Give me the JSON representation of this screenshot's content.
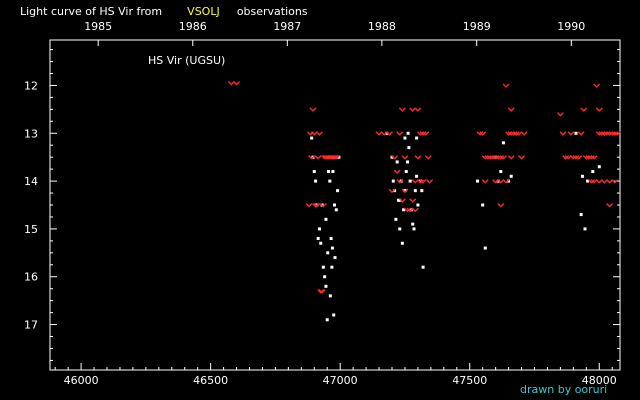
{
  "title_part1": "Light curve of HS Vir from",
  "title_source": "VSOLJ",
  "title_part2": "observations",
  "legend_label": "HS Vir (UGSU)",
  "credit": "drawn by ooruri",
  "colors": {
    "background": "#000000",
    "axis": "#ffffff",
    "source_highlight": "#ffff33",
    "credit": "#33cccc",
    "visual_obs": "#ffffff",
    "fainter_than": "#ff2a2a"
  },
  "chart_data": {
    "type": "scatter",
    "title": "Light curve of HS Vir from VSOLJ observations",
    "x_axis": {
      "label": "",
      "range": [
        45880,
        48080
      ],
      "ticks": [
        "46000",
        "46500",
        "47000",
        "47500",
        "48000"
      ],
      "tick_values": [
        46000,
        46500,
        47000,
        47500,
        48000
      ],
      "minor_step": 50
    },
    "top_axis": {
      "ticks": [
        "1985",
        "1986",
        "1987",
        "1988",
        "1989",
        "1990"
      ],
      "tick_values": [
        46066,
        46431,
        46796,
        47161,
        47527,
        47892
      ]
    },
    "y_axis": {
      "label": "",
      "range": [
        11.05,
        17.95
      ],
      "inverted": true,
      "ticks": [
        "12",
        "13",
        "14",
        "15",
        "16",
        "17"
      ],
      "tick_values": [
        12,
        13,
        14,
        15,
        16,
        17
      ],
      "minor_step": 0.25
    },
    "series": [
      {
        "marker": "dot",
        "points": [
          [
            46890,
            13.1
          ],
          [
            46895,
            13.5
          ],
          [
            46900,
            13.8
          ],
          [
            46905,
            14.0
          ],
          [
            46910,
            14.5
          ],
          [
            46915,
            15.2
          ],
          [
            46920,
            15.0
          ],
          [
            46925,
            15.3
          ],
          [
            46930,
            14.5
          ],
          [
            46935,
            15.8
          ],
          [
            46940,
            16.0
          ],
          [
            46945,
            16.2
          ],
          [
            46950,
            16.9
          ],
          [
            46955,
            13.8
          ],
          [
            46960,
            14.0
          ],
          [
            46965,
            15.2
          ],
          [
            46970,
            15.4
          ],
          [
            46975,
            16.8
          ],
          [
            46980,
            15.6
          ],
          [
            46985,
            14.6
          ],
          [
            46990,
            14.2
          ],
          [
            46995,
            13.5
          ],
          [
            46952,
            15.5
          ],
          [
            46962,
            16.4
          ],
          [
            46972,
            13.8
          ],
          [
            46945,
            14.8
          ],
          [
            46968,
            15.8
          ],
          [
            46978,
            14.5
          ],
          [
            47180,
            13.0
          ],
          [
            47200,
            13.5
          ],
          [
            47205,
            14.0
          ],
          [
            47210,
            14.2
          ],
          [
            47215,
            14.8
          ],
          [
            47220,
            13.6
          ],
          [
            47225,
            14.4
          ],
          [
            47230,
            15.0
          ],
          [
            47235,
            14.0
          ],
          [
            47240,
            15.3
          ],
          [
            47245,
            14.6
          ],
          [
            47250,
            14.2
          ],
          [
            47255,
            13.8
          ],
          [
            47260,
            13.6
          ],
          [
            47265,
            13.3
          ],
          [
            47270,
            14.0
          ],
          [
            47275,
            14.6
          ],
          [
            47280,
            14.9
          ],
          [
            47285,
            15.0
          ],
          [
            47290,
            14.2
          ],
          [
            47295,
            13.9
          ],
          [
            47300,
            14.5
          ],
          [
            47310,
            14.0
          ],
          [
            47315,
            14.2
          ],
          [
            47320,
            15.8
          ],
          [
            47250,
            13.1
          ],
          [
            47262,
            13.0
          ],
          [
            47230,
            14.4
          ],
          [
            47295,
            13.1
          ],
          [
            47530,
            14.0
          ],
          [
            47550,
            14.5
          ],
          [
            47560,
            15.4
          ],
          [
            47600,
            13.5
          ],
          [
            47610,
            14.0
          ],
          [
            47620,
            13.8
          ],
          [
            47630,
            13.2
          ],
          [
            47650,
            14.0
          ],
          [
            47660,
            13.9
          ],
          [
            47910,
            13.0
          ],
          [
            47930,
            14.7
          ],
          [
            47935,
            13.9
          ],
          [
            47945,
            15.0
          ],
          [
            47955,
            14.0
          ],
          [
            47975,
            13.8
          ],
          [
            48000,
            13.7
          ]
        ]
      },
      {
        "marker": "fainter-than",
        "points": [
          [
            46580,
            11.95
          ],
          [
            46600,
            11.95
          ],
          [
            46880,
            14.5
          ],
          [
            46885,
            13.0
          ],
          [
            46890,
            13.5
          ],
          [
            46895,
            12.5
          ],
          [
            46900,
            13.0
          ],
          [
            46905,
            14.5
          ],
          [
            46910,
            14.5
          ],
          [
            46915,
            13.5
          ],
          [
            46920,
            13.0
          ],
          [
            46925,
            16.3
          ],
          [
            46930,
            16.3
          ],
          [
            46935,
            14.5
          ],
          [
            46940,
            13.5
          ],
          [
            46945,
            13.5
          ],
          [
            46950,
            13.5
          ],
          [
            46955,
            13.5
          ],
          [
            46960,
            13.5
          ],
          [
            46965,
            13.5
          ],
          [
            46970,
            13.5
          ],
          [
            46975,
            13.5
          ],
          [
            46980,
            13.5
          ],
          [
            46985,
            13.5
          ],
          [
            47150,
            13.0
          ],
          [
            47170,
            13.0
          ],
          [
            47190,
            13.0
          ],
          [
            47210,
            13.5
          ],
          [
            47220,
            13.8
          ],
          [
            47230,
            14.0
          ],
          [
            47240,
            12.5
          ],
          [
            47250,
            13.5
          ],
          [
            47260,
            14.6
          ],
          [
            47270,
            14.6
          ],
          [
            47280,
            14.4
          ],
          [
            47290,
            14.6
          ],
          [
            47300,
            12.5
          ],
          [
            47310,
            13.0
          ],
          [
            47320,
            13.0
          ],
          [
            47330,
            13.0
          ],
          [
            47340,
            13.5
          ],
          [
            47345,
            14.0
          ],
          [
            47230,
            13.0
          ],
          [
            47280,
            12.5
          ],
          [
            47300,
            13.5
          ],
          [
            47310,
            14.0
          ],
          [
            47200,
            14.2
          ],
          [
            47240,
            14.4
          ],
          [
            47290,
            14.0
          ],
          [
            47320,
            14.0
          ],
          [
            47250,
            14.2
          ],
          [
            47540,
            13.0
          ],
          [
            47550,
            13.0
          ],
          [
            47560,
            13.5
          ],
          [
            47570,
            13.5
          ],
          [
            47580,
            13.5
          ],
          [
            47590,
            13.5
          ],
          [
            47600,
            13.5
          ],
          [
            47610,
            13.5
          ],
          [
            47620,
            13.5
          ],
          [
            47630,
            13.5
          ],
          [
            47640,
            12.0
          ],
          [
            47650,
            13.0
          ],
          [
            47660,
            13.0
          ],
          [
            47670,
            13.0
          ],
          [
            47680,
            13.0
          ],
          [
            47690,
            13.0
          ],
          [
            47700,
            13.5
          ],
          [
            47710,
            13.0
          ],
          [
            47560,
            14.0
          ],
          [
            47600,
            14.0
          ],
          [
            47620,
            14.0
          ],
          [
            47640,
            14.0
          ],
          [
            47660,
            13.5
          ],
          [
            47620,
            14.5
          ],
          [
            47660,
            12.5
          ],
          [
            47850,
            12.6
          ],
          [
            47860,
            13.0
          ],
          [
            47870,
            13.5
          ],
          [
            47880,
            13.5
          ],
          [
            47890,
            13.0
          ],
          [
            47900,
            13.5
          ],
          [
            47910,
            13.5
          ],
          [
            47920,
            13.5
          ],
          [
            47930,
            13.0
          ],
          [
            47940,
            12.5
          ],
          [
            47950,
            13.5
          ],
          [
            47960,
            13.5
          ],
          [
            47970,
            13.5
          ],
          [
            47980,
            13.5
          ],
          [
            47990,
            12.0
          ],
          [
            48000,
            13.0
          ],
          [
            48010,
            13.0
          ],
          [
            48020,
            13.0
          ],
          [
            48030,
            13.0
          ],
          [
            48040,
            13.0
          ],
          [
            48050,
            13.0
          ],
          [
            48060,
            13.0
          ],
          [
            48070,
            13.0
          ],
          [
            47980,
            14.0
          ],
          [
            48000,
            14.0
          ],
          [
            48020,
            14.0
          ],
          [
            48040,
            14.0
          ],
          [
            48060,
            14.0
          ],
          [
            48040,
            14.5
          ],
          [
            48000,
            12.5
          ],
          [
            47970,
            14.0
          ]
        ]
      }
    ]
  }
}
